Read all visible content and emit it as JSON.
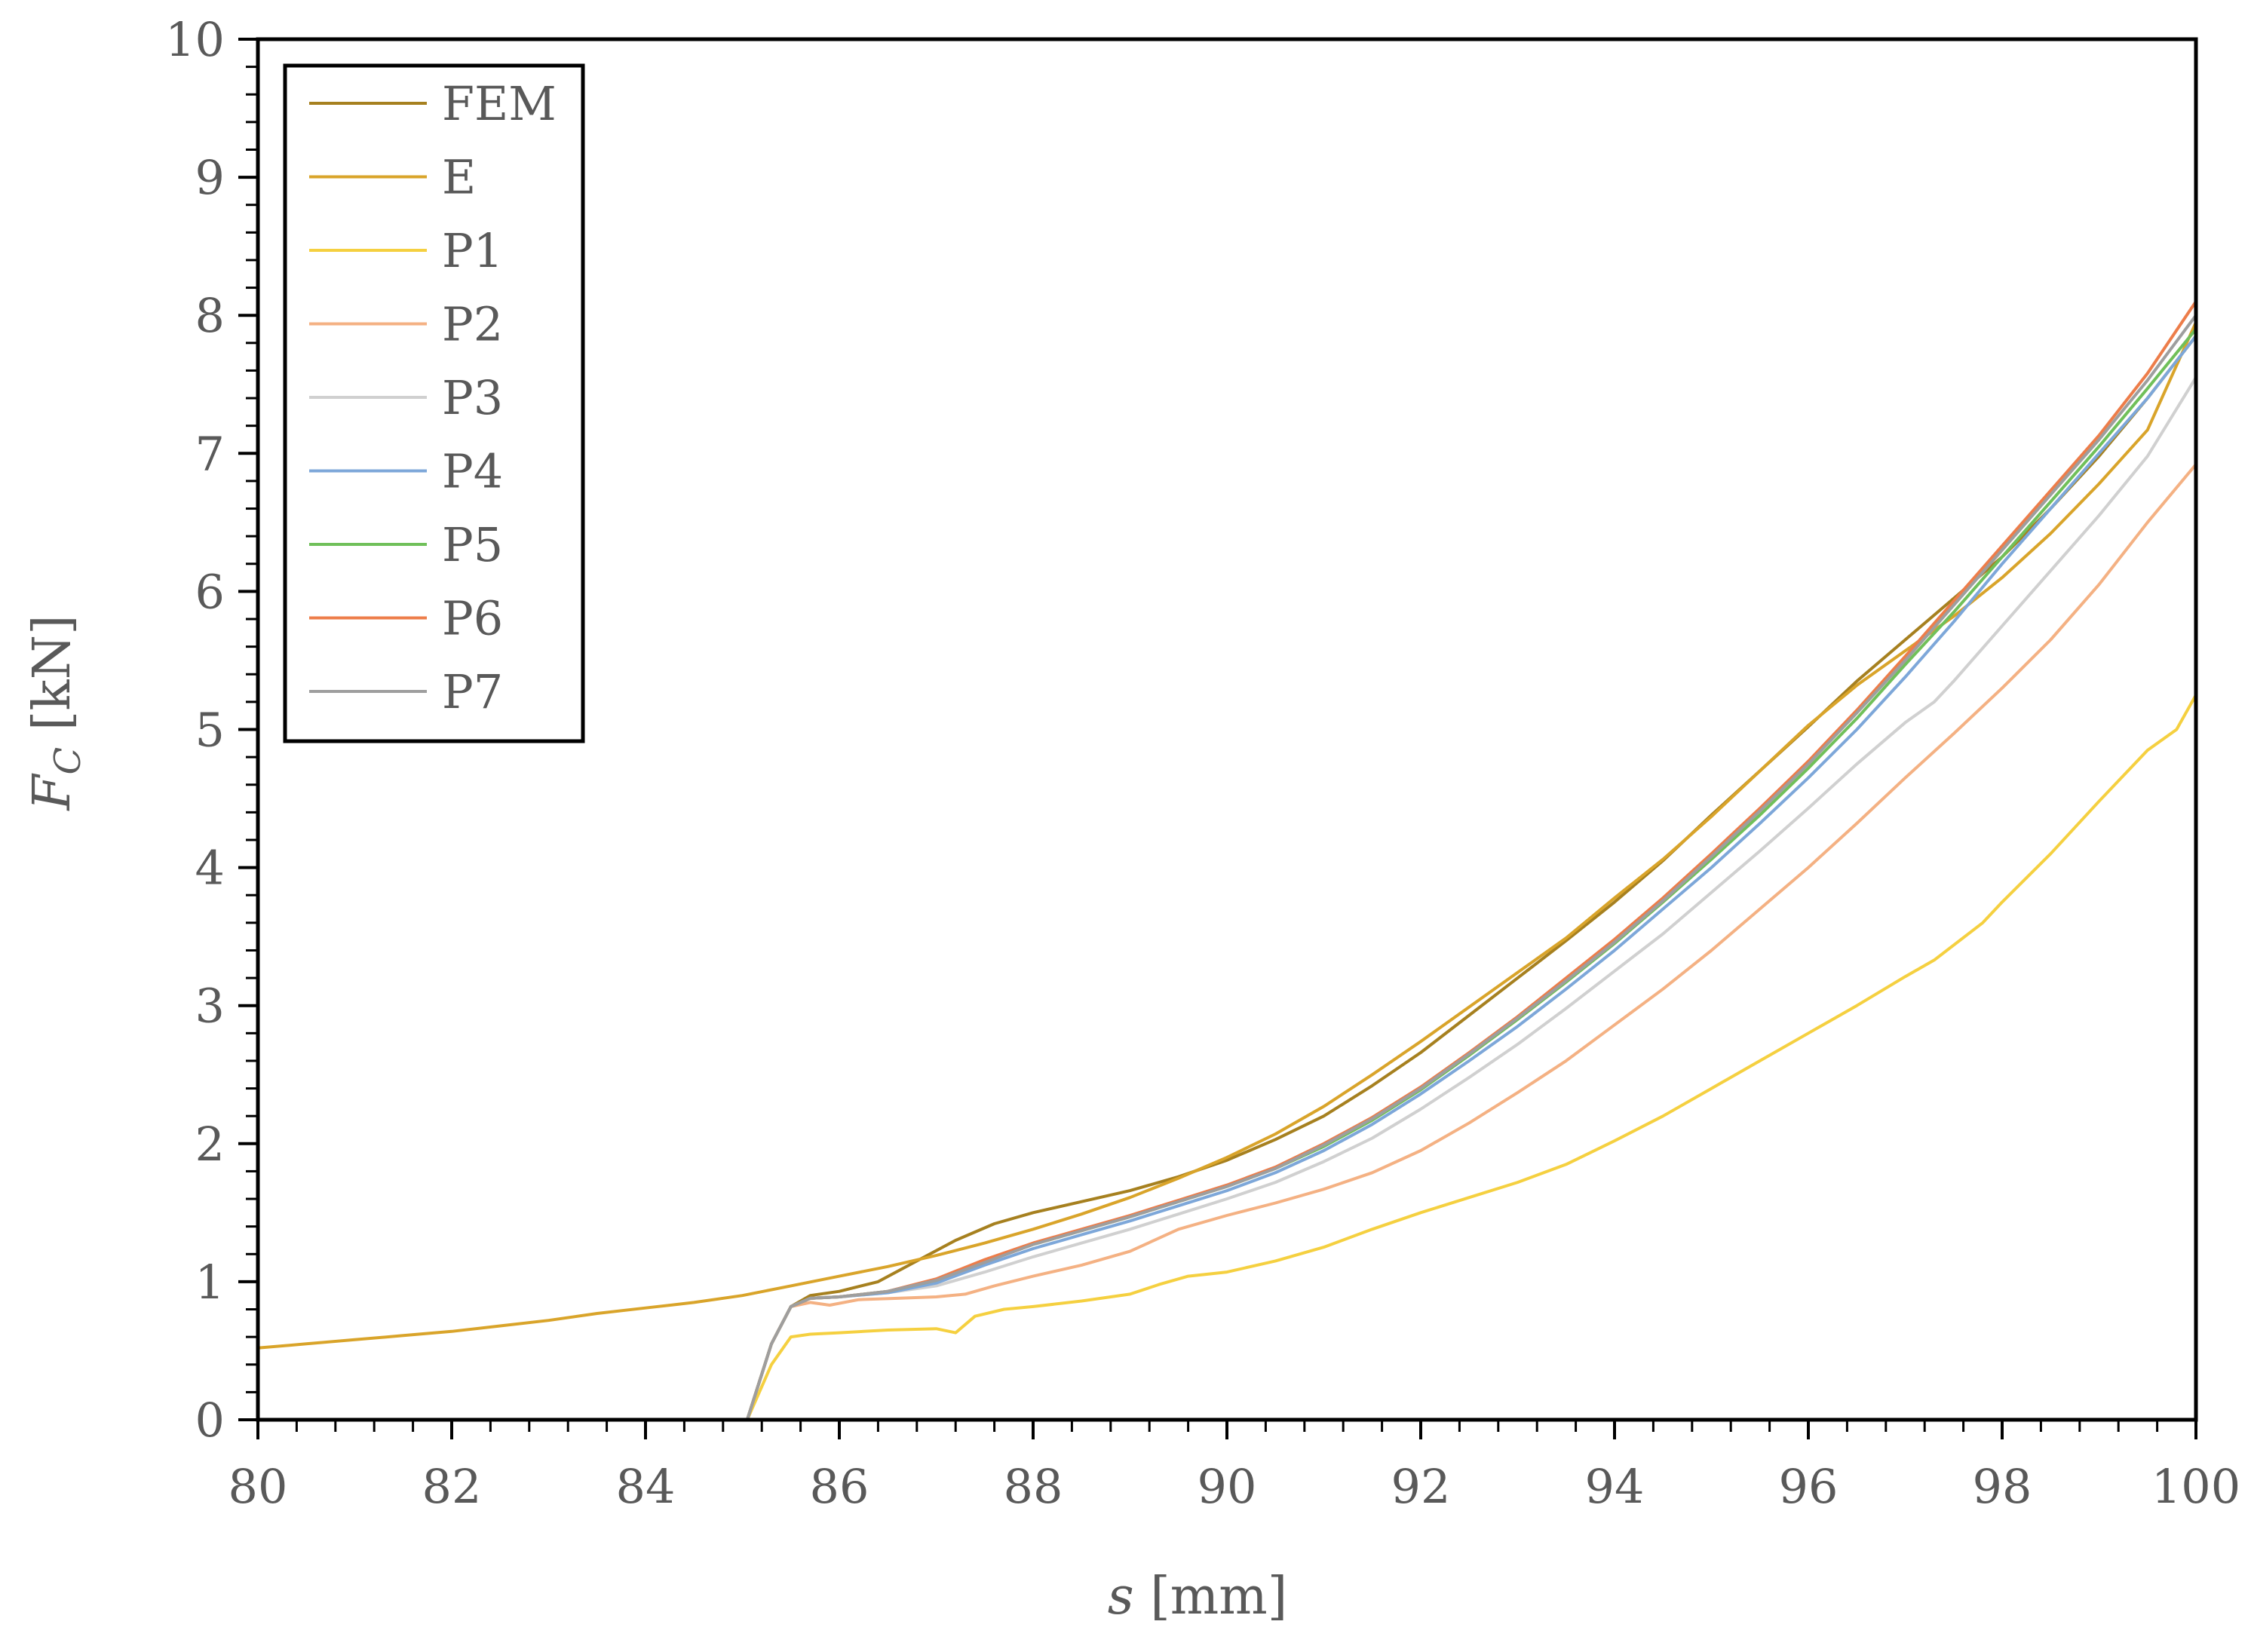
{
  "chart_data": {
    "type": "line",
    "xlabel_var": "s",
    "xlabel_unit": " [mm]",
    "ylabel_var": "F",
    "ylabel_sub": "C",
    "ylabel_unit": " [kN]",
    "xlim": [
      80,
      100
    ],
    "ylim": [
      0,
      10
    ],
    "x_major_ticks": [
      80,
      82,
      84,
      86,
      88,
      90,
      92,
      94,
      96,
      98,
      100
    ],
    "x_tick_labels": [
      "80",
      "82",
      "84",
      "86",
      "88",
      "90",
      "92",
      "94",
      "96",
      "98",
      "100"
    ],
    "x_minor_step": 0.4,
    "y_major_ticks": [
      0,
      1,
      2,
      3,
      4,
      5,
      6,
      7,
      8,
      9,
      10
    ],
    "y_tick_labels": [
      "0",
      "1",
      "2",
      "3",
      "4",
      "5",
      "6",
      "7",
      "8",
      "9",
      "10"
    ],
    "y_minor_step": 0.2,
    "grid": false,
    "legend_position": "top-left",
    "series": [
      {
        "name": "FEM",
        "color": "#a6801f",
        "x": [
          85.05,
          85.3,
          85.5,
          85.7,
          86.0,
          86.4,
          86.8,
          87.2,
          87.6,
          88.0,
          88.5,
          89.0,
          89.5,
          90.0,
          90.5,
          91.0,
          91.5,
          92.0,
          92.5,
          93.0,
          93.5,
          94.0,
          94.5,
          95.0,
          95.5,
          96.0,
          96.5,
          97.0,
          97.5,
          98.0,
          98.5,
          99.0,
          99.5,
          100.0
        ],
        "y": [
          0.0,
          0.55,
          0.82,
          0.9,
          0.93,
          1.0,
          1.15,
          1.3,
          1.42,
          1.5,
          1.58,
          1.66,
          1.76,
          1.88,
          2.03,
          2.2,
          2.42,
          2.66,
          2.93,
          3.2,
          3.47,
          3.75,
          4.05,
          4.38,
          4.7,
          5.02,
          5.35,
          5.65,
          5.95,
          6.25,
          6.6,
          6.98,
          7.4,
          7.85
        ]
      },
      {
        "name": "E",
        "color": "#d9a42a",
        "x": [
          80,
          80.5,
          81,
          81.5,
          82,
          82.5,
          83,
          83.5,
          84,
          84.5,
          85,
          85.5,
          86,
          86.5,
          87,
          87.5,
          88,
          88.5,
          89,
          89.5,
          90,
          90.5,
          91,
          91.5,
          92,
          92.5,
          93,
          93.5,
          94,
          94.5,
          95,
          95.5,
          96,
          96.5,
          97,
          97.5,
          98,
          98.5,
          99,
          99.5,
          100
        ],
        "y": [
          0.52,
          0.55,
          0.58,
          0.61,
          0.64,
          0.68,
          0.72,
          0.77,
          0.81,
          0.85,
          0.9,
          0.97,
          1.04,
          1.11,
          1.19,
          1.28,
          1.38,
          1.49,
          1.61,
          1.75,
          1.9,
          2.07,
          2.27,
          2.5,
          2.74,
          2.99,
          3.24,
          3.49,
          3.78,
          4.06,
          4.37,
          4.7,
          5.03,
          5.32,
          5.57,
          5.82,
          6.1,
          6.42,
          6.78,
          7.17,
          7.95
        ]
      },
      {
        "name": "P1",
        "color": "#f5d040",
        "x": [
          85.05,
          85.3,
          85.5,
          85.7,
          86.0,
          86.5,
          87.0,
          87.2,
          87.4,
          87.7,
          88.0,
          88.5,
          89.0,
          89.3,
          89.6,
          90.0,
          90.5,
          91.0,
          91.5,
          92.0,
          92.5,
          93.0,
          93.5,
          94.0,
          94.5,
          95.0,
          95.5,
          96.0,
          96.5,
          97.0,
          97.3,
          97.8,
          98.0,
          98.5,
          99.0,
          99.5,
          99.8,
          100.0
        ],
        "y": [
          0.0,
          0.4,
          0.6,
          0.62,
          0.63,
          0.65,
          0.66,
          0.63,
          0.75,
          0.8,
          0.82,
          0.86,
          0.91,
          0.98,
          1.04,
          1.07,
          1.15,
          1.25,
          1.38,
          1.5,
          1.61,
          1.72,
          1.85,
          2.02,
          2.2,
          2.4,
          2.6,
          2.8,
          3.0,
          3.21,
          3.33,
          3.6,
          3.75,
          4.1,
          4.48,
          4.85,
          5.0,
          5.25
        ]
      },
      {
        "name": "P2",
        "color": "#f4b183",
        "x": [
          85.05,
          85.3,
          85.5,
          85.7,
          85.9,
          86.2,
          86.6,
          87.0,
          87.3,
          87.6,
          88.0,
          88.5,
          89.0,
          89.5,
          90.0,
          90.5,
          91.0,
          91.5,
          92.0,
          92.5,
          93.0,
          93.5,
          94.0,
          94.5,
          95.0,
          95.5,
          96.0,
          96.5,
          97.0,
          97.5,
          98.0,
          98.5,
          99.0,
          99.5,
          100.0
        ],
        "y": [
          0.0,
          0.55,
          0.82,
          0.85,
          0.83,
          0.87,
          0.88,
          0.89,
          0.91,
          0.97,
          1.04,
          1.12,
          1.22,
          1.38,
          1.48,
          1.57,
          1.67,
          1.79,
          1.95,
          2.15,
          2.37,
          2.6,
          2.86,
          3.12,
          3.4,
          3.7,
          4.0,
          4.32,
          4.65,
          4.97,
          5.3,
          5.65,
          6.05,
          6.5,
          6.92
        ]
      },
      {
        "name": "P3",
        "color": "#d0d0d0",
        "x": [
          85.05,
          85.3,
          85.5,
          85.7,
          86.0,
          86.5,
          87.0,
          87.5,
          88.0,
          88.5,
          89.0,
          89.5,
          90.0,
          90.5,
          91.0,
          91.5,
          92.0,
          92.5,
          93.0,
          93.5,
          94.0,
          94.5,
          95.0,
          95.5,
          96.0,
          96.5,
          97.0,
          97.3,
          97.5,
          98.0,
          98.5,
          99.0,
          99.5,
          100.0
        ],
        "y": [
          0.0,
          0.55,
          0.82,
          0.88,
          0.89,
          0.92,
          0.97,
          1.07,
          1.18,
          1.28,
          1.38,
          1.49,
          1.6,
          1.72,
          1.87,
          2.04,
          2.25,
          2.48,
          2.72,
          2.98,
          3.25,
          3.52,
          3.82,
          4.12,
          4.43,
          4.75,
          5.05,
          5.2,
          5.35,
          5.75,
          6.15,
          6.55,
          6.98,
          7.55
        ]
      },
      {
        "name": "P4",
        "color": "#7da7d9",
        "x": [
          85.05,
          85.3,
          85.5,
          85.7,
          86.0,
          86.5,
          87.0,
          87.5,
          88.0,
          88.5,
          89.0,
          89.5,
          90.0,
          90.5,
          91.0,
          91.5,
          92.0,
          92.5,
          93.0,
          93.5,
          94.0,
          94.5,
          95.0,
          95.5,
          96.0,
          96.5,
          97.0,
          97.5,
          98.0,
          98.5,
          99.0,
          99.5,
          100.0
        ],
        "y": [
          0.0,
          0.55,
          0.82,
          0.88,
          0.89,
          0.92,
          0.99,
          1.12,
          1.24,
          1.34,
          1.44,
          1.55,
          1.66,
          1.79,
          1.95,
          2.14,
          2.36,
          2.6,
          2.85,
          3.12,
          3.4,
          3.7,
          4.0,
          4.32,
          4.65,
          5.0,
          5.38,
          5.78,
          6.2,
          6.6,
          7.0,
          7.4,
          7.85
        ]
      },
      {
        "name": "P5",
        "color": "#70c05a",
        "x": [
          85.05,
          85.3,
          85.5,
          85.7,
          86.0,
          86.5,
          87.0,
          87.5,
          88.0,
          88.5,
          89.0,
          89.5,
          90.0,
          90.5,
          91.0,
          91.5,
          92.0,
          92.5,
          93.0,
          93.5,
          94.0,
          94.5,
          95.0,
          95.5,
          96.0,
          96.5,
          97.0,
          97.5,
          98.0,
          98.5,
          99.0,
          99.5,
          100.0
        ],
        "y": [
          0.0,
          0.55,
          0.82,
          0.88,
          0.89,
          0.93,
          1.01,
          1.15,
          1.27,
          1.37,
          1.47,
          1.58,
          1.69,
          1.82,
          1.98,
          2.17,
          2.39,
          2.64,
          2.9,
          3.17,
          3.45,
          3.75,
          4.06,
          4.38,
          4.72,
          5.08,
          5.47,
          5.85,
          6.25,
          6.65,
          7.05,
          7.47,
          7.9
        ]
      },
      {
        "name": "P6",
        "color": "#ed7d4a",
        "x": [
          85.05,
          85.3,
          85.5,
          85.7,
          86.0,
          86.5,
          87.0,
          87.5,
          88.0,
          88.5,
          89.0,
          89.5,
          90.0,
          90.5,
          91.0,
          91.5,
          92.0,
          92.5,
          93.0,
          93.5,
          94.0,
          94.5,
          95.0,
          95.5,
          96.0,
          96.5,
          97.0,
          97.5,
          98.0,
          98.5,
          99.0,
          99.5,
          100.0
        ],
        "y": [
          0.0,
          0.55,
          0.82,
          0.88,
          0.89,
          0.93,
          1.02,
          1.16,
          1.28,
          1.38,
          1.48,
          1.59,
          1.7,
          1.83,
          2.0,
          2.19,
          2.41,
          2.66,
          2.92,
          3.2,
          3.48,
          3.78,
          4.1,
          4.43,
          4.77,
          5.14,
          5.53,
          5.93,
          6.33,
          6.73,
          7.13,
          7.58,
          8.1
        ]
      },
      {
        "name": "P7",
        "color": "#9e9e9e",
        "x": [
          85.05,
          85.3,
          85.5,
          85.7,
          86.0,
          86.5,
          87.0,
          87.5,
          88.0,
          88.5,
          89.0,
          89.5,
          90.0,
          90.5,
          91.0,
          91.5,
          92.0,
          92.5,
          93.0,
          93.5,
          94.0,
          94.5,
          95.0,
          95.5,
          96.0,
          96.5,
          97.0,
          97.5,
          98.0,
          98.5,
          99.0,
          99.5,
          100.0
        ],
        "y": [
          0.0,
          0.55,
          0.82,
          0.88,
          0.89,
          0.93,
          1.01,
          1.14,
          1.27,
          1.37,
          1.47,
          1.58,
          1.69,
          1.82,
          1.99,
          2.18,
          2.4,
          2.65,
          2.91,
          3.18,
          3.46,
          3.76,
          4.08,
          4.41,
          4.75,
          5.12,
          5.5,
          5.9,
          6.3,
          6.7,
          7.1,
          7.53,
          8.0
        ]
      }
    ]
  }
}
